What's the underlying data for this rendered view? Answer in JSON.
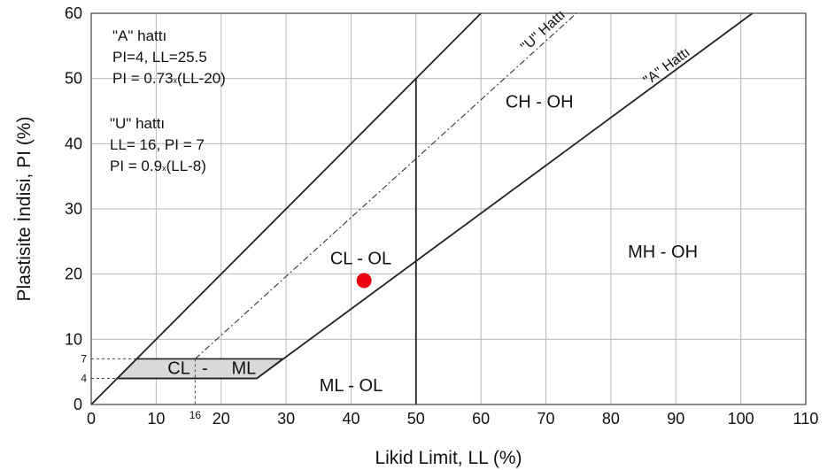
{
  "chart_data": {
    "type": "scatter",
    "title": "",
    "xlabel": "Likid Limit, LL (%)",
    "ylabel": "Plastisite İndisi, PI (%)",
    "xlim": [
      0,
      110
    ],
    "ylim": [
      0,
      60
    ],
    "x_ticks": [
      "0",
      "10",
      "20",
      "30",
      "40",
      "50",
      "60",
      "70",
      "80",
      "90",
      "100",
      "110"
    ],
    "y_ticks": [
      "0",
      "10",
      "20",
      "30",
      "40",
      "50",
      "60"
    ],
    "extra_ticks": {
      "x": [
        {
          "value": 16,
          "label": "16"
        }
      ],
      "y": [
        {
          "value": 7,
          "label": "7"
        },
        {
          "value": 4,
          "label": "4"
        }
      ]
    },
    "grid": true,
    "point": {
      "x": 42,
      "y": 19,
      "color": "#e8000f"
    },
    "lines": [
      {
        "name": "\"A\" hattı",
        "label": "\"A\" Hattı",
        "points": [
          [
            4,
            4
          ],
          [
            25.5,
            4
          ],
          [
            101.8,
            60
          ]
        ]
      },
      {
        "name": "\"U\" hattı",
        "label": "\"U\" Hattı",
        "points": [
          [
            16,
            7
          ],
          [
            74.7,
            60
          ]
        ]
      },
      {
        "name": "upper-boundary",
        "points": [
          [
            0,
            0
          ],
          [
            60,
            60
          ]
        ]
      },
      {
        "name": "LL-50-boundary",
        "points": [
          [
            50,
            0
          ],
          [
            50,
            50
          ]
        ]
      }
    ],
    "zones": [
      {
        "label": "CH - OH",
        "x": 69,
        "y": 46.5
      },
      {
        "label": "MH - OH",
        "x": 88,
        "y": 23.5
      },
      {
        "label": "CL - OL",
        "x": 41.5,
        "y": 22.5
      },
      {
        "label": "ML - OL",
        "x": 40,
        "y": 3
      }
    ],
    "cl_ml": {
      "parts": [
        "CL",
        "-",
        "ML"
      ],
      "polygon": [
        [
          4,
          4
        ],
        [
          7,
          7
        ],
        [
          29.5,
          7
        ],
        [
          25.5,
          4
        ]
      ]
    },
    "notes": [
      {
        "lines": [
          "\"A\" hattı",
          "PI=4, LL=25.5",
          "PI = 0.73",
          "x",
          "(LL-20)"
        ]
      },
      {
        "lines": [
          "\"U\" hattı",
          "LL= 16, PI = 7",
          "PI = 0.9",
          "x",
          "(LL-8)"
        ]
      }
    ]
  }
}
